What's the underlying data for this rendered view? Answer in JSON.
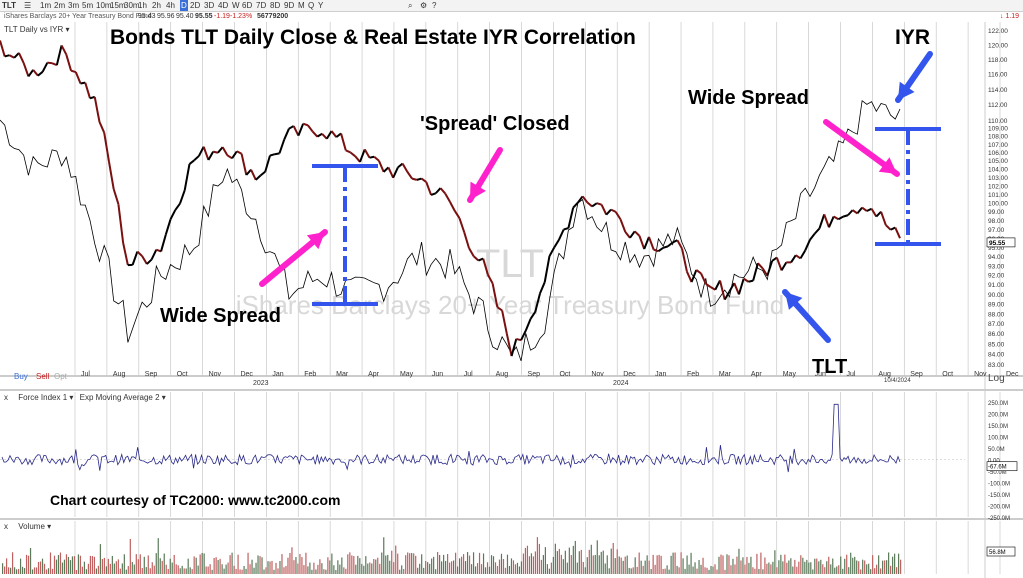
{
  "toolbar": {
    "symbol": "TLT",
    "timeframes": [
      "1m",
      "2m",
      "3m",
      "5m",
      "10m",
      "15m",
      "30m",
      "1h",
      "2h",
      "4h",
      "D",
      "2D",
      "3D",
      "4D",
      "W",
      "6D",
      "7D",
      "8D",
      "9D",
      "M",
      "Q",
      "Y"
    ],
    "active_timeframe": "D"
  },
  "infobar": {
    "name": "iShares Barclays 20+ Year Treasury Bond Fund",
    "open": "95.43",
    "high": "95.96",
    "low": "95.40",
    "close": "95.55",
    "change": "-1.19",
    "change_pct": "-1.23%",
    "volume": "56779200",
    "right_change": "1.19"
  },
  "price_panel": {
    "label": "TLT Daily vs IYR",
    "watermark_symbol": "TLT",
    "watermark_name": "iShares Barclays 20+ Year Treasury Bond Fund",
    "last_price_tag": "95.55",
    "log_label": "Log",
    "buy": "Buy",
    "sell": "Sell",
    "opt": "Opt",
    "date_label": "10/4/2024"
  },
  "annotations": {
    "title": "Bonds TLT Daily Close & Real Estate IYR Correlation",
    "iyr": "IYR",
    "wide_spread_right": "Wide Spread",
    "spread_closed": "'Spread' Closed",
    "wide_spread_left": "Wide Spread",
    "tlt": "TLT",
    "courtesy": "Chart courtesy of TC2000:  www.tc2000.com"
  },
  "force_panel": {
    "close": "x",
    "label1": "Force Index 1",
    "label2": "Exp Moving Average 2",
    "last_tag": "-67.6M"
  },
  "volume_panel": {
    "close": "x",
    "label": "Volume",
    "last_tag": "56.8M"
  },
  "colors": {
    "tlt_down": "#7a1010",
    "tlt_up": "#000000",
    "iyr": "#000000",
    "arrow_blue": "#3355ee",
    "arrow_pink": "#ff22cc",
    "force_line": "#2a2a8a",
    "volume_bar": "#c06060"
  },
  "chart_data": [
    {
      "type": "line",
      "series": [
        {
          "name": "TLT",
          "x": [
            "2022-06",
            "2022-07",
            "2022-08",
            "2022-09",
            "2022-10",
            "2022-11",
            "2022-12",
            "2023-01",
            "2023-02",
            "2023-03",
            "2023-04",
            "2023-05",
            "2023-06",
            "2023-07",
            "2023-08",
            "2023-09",
            "2023-10",
            "2023-11",
            "2023-12",
            "2024-01",
            "2024-02",
            "2024-03",
            "2024-04",
            "2024-05",
            "2024-06",
            "2024-07",
            "2024-08",
            "2024-09",
            "2024-10"
          ],
          "values": [
            120,
            116,
            119,
            112,
            93,
            95,
            105,
            107,
            103,
            108,
            109,
            106,
            104,
            103,
            100,
            93,
            84,
            92,
            101,
            99,
            96,
            95,
            90,
            91,
            93,
            95,
            99,
            100,
            95.55
          ]
        },
        {
          "name": "IYR",
          "x": [
            "2022-06",
            "2022-07",
            "2022-08",
            "2022-09",
            "2022-10",
            "2022-11",
            "2022-12",
            "2023-01",
            "2023-02",
            "2023-03",
            "2023-04",
            "2023-05",
            "2023-06",
            "2023-07",
            "2023-08",
            "2023-09",
            "2023-10",
            "2023-11",
            "2023-12",
            "2024-01",
            "2024-02",
            "2024-03",
            "2024-04",
            "2024-05",
            "2024-06",
            "2024-07",
            "2024-08",
            "2024-09",
            "2024-10"
          ],
          "values": [
            110,
            104,
            106,
            96,
            86,
            92,
            95,
            104,
            98,
            90,
            92,
            90,
            91,
            94,
            93,
            88,
            83,
            88,
            101,
            96,
            94,
            96,
            90,
            92,
            93,
            100,
            105,
            112,
            110
          ]
        }
      ],
      "y_ticks": [
        "122.00",
        "120.00",
        "118.00",
        "116.00",
        "114.00",
        "112.00",
        "110.00",
        "109.00",
        "108.00",
        "107.00",
        "106.00",
        "105.00",
        "104.00",
        "103.00",
        "102.00",
        "101.00",
        "100.00",
        "99.00",
        "98.00",
        "97.00",
        "96.00",
        "95.00",
        "94.00",
        "93.00",
        "92.00",
        "91.00",
        "90.00",
        "89.00",
        "88.00",
        "87.00",
        "86.00",
        "85.00",
        "84.00",
        "83.00"
      ],
      "x_ticks": [
        "Jul",
        "Aug",
        "Sep",
        "Oct",
        "Nov",
        "Dec",
        "Jan",
        "Feb",
        "Mar",
        "Apr",
        "May",
        "Jun",
        "Jul",
        "Aug",
        "Sep",
        "Oct",
        "Nov",
        "Dec",
        "Jan",
        "Feb",
        "Mar",
        "Apr",
        "May",
        "Jun",
        "Jul",
        "Aug",
        "Sep",
        "Oct",
        "Nov",
        "Dec"
      ],
      "year_labels": [
        "2023",
        "2024"
      ],
      "ylim": [
        83,
        122
      ],
      "scale": "log"
    },
    {
      "type": "line",
      "y_ticks": [
        "250.0M",
        "200.0M",
        "150.0M",
        "100.0M",
        "50.0M",
        "0.00",
        "-50.0M",
        "-100.0M",
        "-150.0M",
        "-200.0M",
        "-250.0M"
      ],
      "ylim": [
        -250,
        250
      ]
    },
    {
      "type": "bar"
    }
  ]
}
